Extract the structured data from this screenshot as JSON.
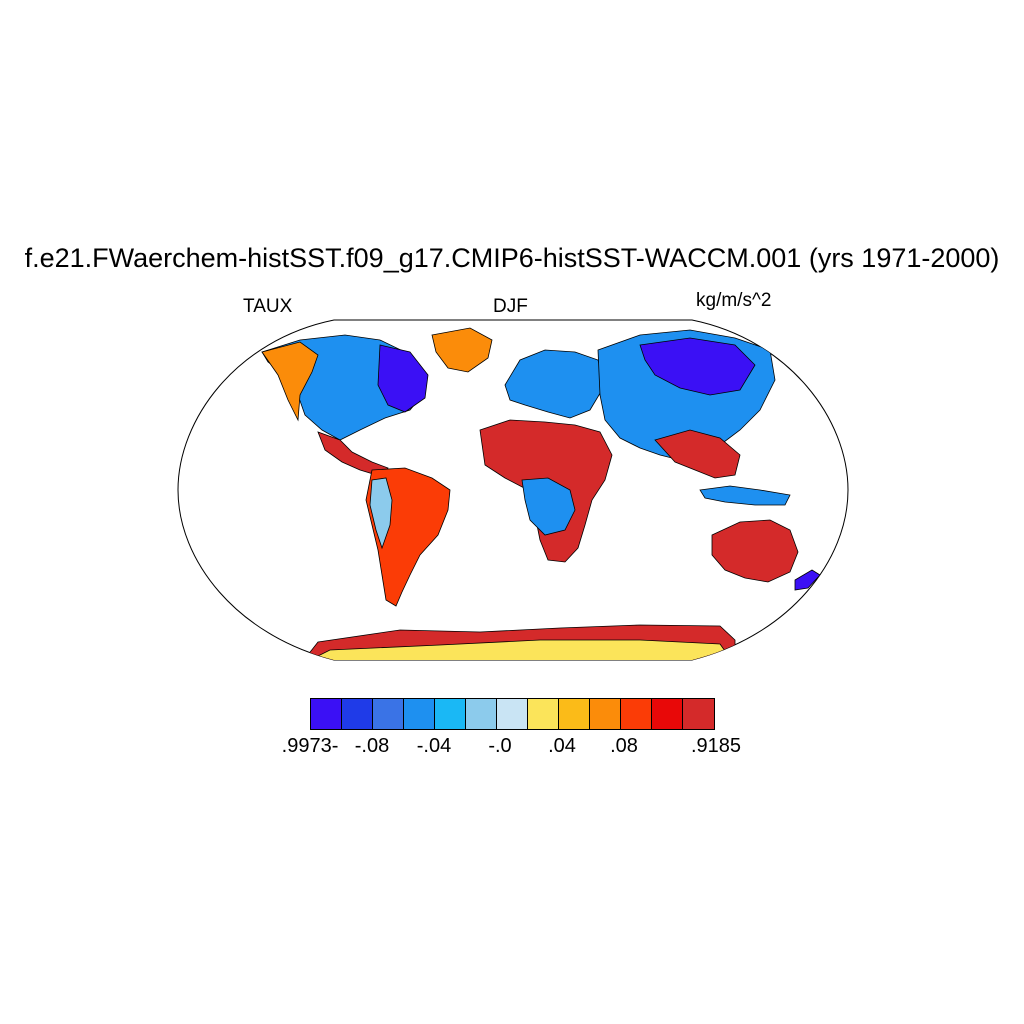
{
  "title": "f.e21.FWaerchem-histSST.f09_g17.CMIP6-histSST-WACCM.001 (yrs 1971-2000)",
  "left_label": "TAUX",
  "center_label": "DJF",
  "right_label": "kg/m/s^2",
  "colorbar": {
    "colors": [
      "#3b10f5",
      "#1f3be8",
      "#3a73e6",
      "#1e90f0",
      "#1ab8f5",
      "#8ccbec",
      "#c9e4f4",
      "#fbe45a",
      "#fbbb18",
      "#fb8c0a",
      "#fb3c06",
      "#e80808",
      "#d42a2a"
    ],
    "tick_labels": [
      ".9973-",
      "-.08",
      "-.04",
      "-.0",
      ".04",
      ".08",
      ".9185"
    ]
  },
  "map": {
    "projection": "robinson",
    "land_colors": {
      "strong_negative": "#3b10f5",
      "moderate_negative": "#3a73e6",
      "weak_negative": "#8ccbec",
      "weak_positive": "#fbe45a",
      "moderate_positive": "#fb8c0a",
      "strong_positive": "#d42a2a"
    }
  }
}
